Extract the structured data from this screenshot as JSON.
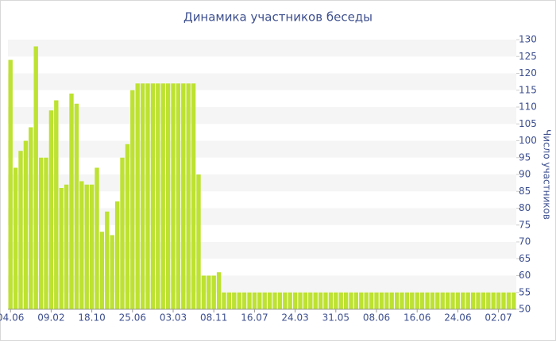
{
  "chart_data": {
    "type": "bar",
    "title": "Динамика участников беседы",
    "y_axis_label": "Число участников",
    "categories": [
      "04.06",
      null,
      null,
      null,
      null,
      null,
      null,
      null,
      "09.02",
      null,
      null,
      null,
      null,
      null,
      null,
      null,
      "18.10",
      null,
      null,
      null,
      null,
      null,
      null,
      null,
      "25.06",
      null,
      null,
      null,
      null,
      null,
      null,
      null,
      "03.03",
      null,
      null,
      null,
      null,
      null,
      null,
      null,
      "08.11",
      null,
      null,
      null,
      null,
      null,
      null,
      null,
      "16.07",
      null,
      null,
      null,
      null,
      null,
      null,
      null,
      "24.03",
      null,
      null,
      null,
      null,
      null,
      null,
      null,
      "31.05",
      null,
      null,
      null,
      null,
      null,
      null,
      null,
      "08.06",
      null,
      null,
      null,
      null,
      null,
      null,
      null,
      "16.06",
      null,
      null,
      null,
      null,
      null,
      null,
      null,
      "24.06",
      null,
      null,
      null,
      null,
      null,
      null,
      null,
      "02.07",
      null,
      null,
      null
    ],
    "values": [
      124,
      92,
      97,
      100,
      104,
      128,
      95,
      95,
      109,
      112,
      86,
      87,
      114,
      111,
      88,
      87,
      87,
      92,
      73,
      79,
      72,
      82,
      95,
      99,
      115,
      117,
      117,
      117,
      117,
      117,
      117,
      117,
      117,
      117,
      117,
      117,
      117,
      90,
      60,
      60,
      60,
      61,
      55,
      55,
      55,
      55,
      55,
      55,
      55,
      55,
      55,
      55,
      55,
      55,
      55,
      55,
      55,
      55,
      55,
      55,
      55,
      55,
      55,
      55,
      55,
      55,
      55,
      55,
      55,
      55,
      55,
      55,
      55,
      55,
      55,
      55,
      55,
      55,
      55,
      55,
      55,
      55,
      55,
      55,
      55,
      55,
      55,
      55,
      55,
      55,
      55,
      55,
      55,
      55,
      55,
      55,
      55,
      55,
      55,
      55
    ],
    "color": "#bde231",
    "ylim": [
      50,
      130
    ],
    "yticks": [
      50,
      55,
      60,
      65,
      70,
      75,
      80,
      85,
      90,
      95,
      100,
      105,
      110,
      115,
      120,
      125,
      130
    ],
    "grid": true
  }
}
